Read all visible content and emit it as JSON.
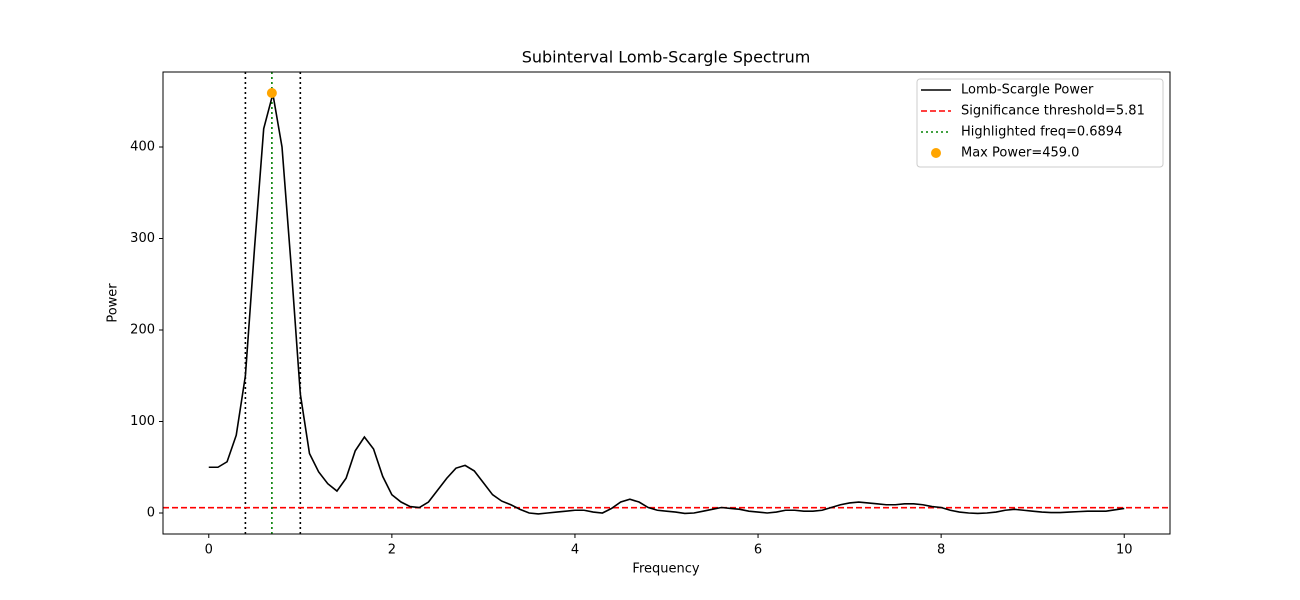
{
  "chart_data": {
    "type": "line",
    "title": "Subinterval Lomb-Scargle Spectrum",
    "xlabel": "Frequency",
    "ylabel": "Power",
    "xlim": [
      -0.5,
      10.5
    ],
    "ylim": [
      -22.95,
      481.95
    ],
    "xticks": [
      0,
      2,
      4,
      6,
      8,
      10
    ],
    "yticks": [
      0,
      100,
      200,
      300,
      400
    ],
    "legend": "upper right",
    "series": [
      {
        "name": "Lomb-Scargle Power",
        "color": "#000000",
        "x": [
          0,
          0.1,
          0.2,
          0.3,
          0.4,
          0.5,
          0.6,
          0.7,
          0.8,
          0.9,
          1.0,
          1.1,
          1.2,
          1.3,
          1.4,
          1.5,
          1.6,
          1.7,
          1.8,
          1.9,
          2.0,
          2.1,
          2.2,
          2.3,
          2.4,
          2.5,
          2.6,
          2.7,
          2.8,
          2.9,
          3.0,
          3.1,
          3.2,
          3.3,
          3.4,
          3.5,
          3.6,
          3.7,
          3.8,
          3.9,
          4.0,
          4.1,
          4.2,
          4.3,
          4.4,
          4.5,
          4.6,
          4.7,
          4.8,
          4.9,
          5.0,
          5.1,
          5.2,
          5.3,
          5.4,
          5.5,
          5.6,
          5.7,
          5.8,
          5.9,
          6.0,
          6.1,
          6.2,
          6.3,
          6.4,
          6.5,
          6.6,
          6.7,
          6.8,
          6.9,
          7.0,
          7.1,
          7.2,
          7.3,
          7.4,
          7.5,
          7.6,
          7.7,
          7.8,
          7.9,
          8.0,
          8.1,
          8.2,
          8.3,
          8.4,
          8.5,
          8.6,
          8.7,
          8.8,
          8.9,
          9.0,
          9.1,
          9.2,
          9.3,
          9.4,
          9.5,
          9.6,
          9.7,
          9.8,
          9.9,
          10.0
        ],
        "values": [
          50,
          50,
          56,
          85,
          150,
          290,
          420,
          458,
          400,
          270,
          130,
          65,
          45,
          32,
          24,
          38,
          68,
          83,
          70,
          40,
          20,
          12,
          7,
          6,
          12,
          25,
          38,
          49,
          52,
          46,
          33,
          20,
          13,
          9,
          4,
          0,
          -1,
          0,
          1,
          2,
          3,
          3,
          1,
          0,
          5,
          12,
          15,
          12,
          6,
          3,
          2,
          1,
          -0.5,
          0,
          2,
          4,
          6,
          5,
          4,
          2,
          1,
          0,
          1,
          3,
          3,
          2,
          2,
          3,
          6,
          9,
          11,
          12,
          11,
          10,
          9,
          9,
          10,
          10,
          9,
          7,
          6,
          3,
          1,
          0,
          -0.5,
          0,
          1,
          3,
          4,
          3,
          2,
          1,
          0.5,
          0.5,
          1,
          1.5,
          2,
          2,
          2,
          3.5,
          5
        ]
      }
    ],
    "threshold": {
      "name": "Significance threshold=5.81",
      "value": 5.81,
      "color": "#ff0000"
    },
    "highlight": {
      "name": "Highlighted freq=0.6894",
      "value": 0.6894,
      "color": "#008000"
    },
    "max_point": {
      "name": "Max Power=459.0",
      "x": 0.6894,
      "y": 459.0,
      "color": "#ffa500"
    },
    "band_edges": {
      "values": [
        0.4,
        1.0
      ],
      "color": "#000000"
    }
  }
}
